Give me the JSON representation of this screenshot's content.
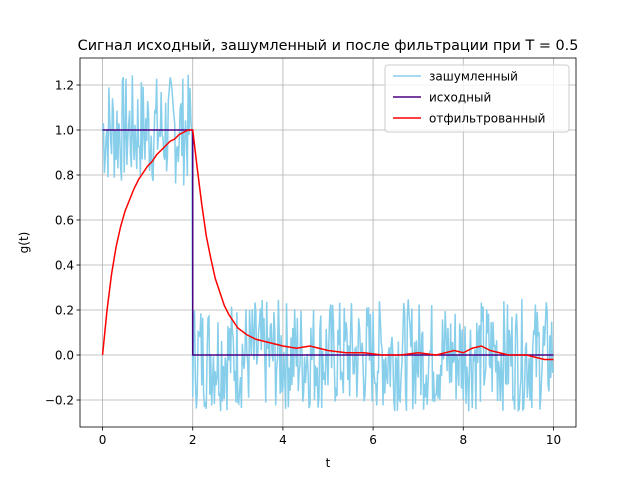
{
  "chart_data": {
    "type": "line",
    "title": "Сигнал исходный, зашумленный и после фильтрации при T = 0.5",
    "xlabel": "t",
    "ylabel": "g(t)",
    "xlim": [
      -0.5,
      10.5
    ],
    "ylim": [
      -0.32,
      1.32
    ],
    "xticks": [
      0,
      2,
      4,
      6,
      8,
      10
    ],
    "yticks": [
      -0.2,
      0.0,
      0.2,
      0.4,
      0.6,
      0.8,
      1.0,
      1.2
    ],
    "xtick_labels": [
      "0",
      "2",
      "4",
      "6",
      "8",
      "10"
    ],
    "ytick_labels": [
      "−0.2",
      "0.0",
      "0.2",
      "0.4",
      "0.6",
      "0.8",
      "1.0",
      "1.2"
    ],
    "grid": true,
    "legend_position": "top-right",
    "series": [
      {
        "name": "зашумленный",
        "color": "#87ceeb",
        "noise": {
          "t_start": 0,
          "t_end": 10,
          "step_t": 2,
          "level_before": 1.0,
          "level_after": 0.0,
          "amplitude": 0.25
        }
      },
      {
        "name": "исходный",
        "color": "#4b0082",
        "x": [
          0,
          2,
          2,
          10
        ],
        "y": [
          1,
          1,
          0,
          0
        ]
      },
      {
        "name": "отфильтрованный",
        "color": "#ff0000",
        "x": [
          0,
          0.1,
          0.2,
          0.3,
          0.4,
          0.5,
          0.6,
          0.7,
          0.8,
          0.9,
          1.0,
          1.1,
          1.2,
          1.3,
          1.4,
          1.5,
          1.6,
          1.7,
          1.8,
          1.9,
          2.0,
          2.1,
          2.2,
          2.3,
          2.4,
          2.5,
          2.6,
          2.7,
          2.8,
          3.0,
          3.2,
          3.4,
          3.6,
          3.8,
          4.0,
          4.3,
          4.6,
          5.0,
          5.4,
          5.8,
          6.2,
          6.6,
          7.0,
          7.4,
          7.8,
          8.0,
          8.2,
          8.4,
          8.6,
          9.0,
          9.4,
          9.8,
          10.0
        ],
        "y": [
          0.0,
          0.2,
          0.36,
          0.48,
          0.57,
          0.64,
          0.69,
          0.74,
          0.78,
          0.81,
          0.84,
          0.86,
          0.89,
          0.91,
          0.93,
          0.95,
          0.96,
          0.98,
          0.99,
          1.0,
          1.0,
          0.83,
          0.67,
          0.53,
          0.43,
          0.34,
          0.28,
          0.22,
          0.18,
          0.12,
          0.09,
          0.07,
          0.06,
          0.05,
          0.04,
          0.03,
          0.04,
          0.02,
          0.01,
          0.01,
          0.0,
          0.0,
          0.01,
          0.0,
          0.02,
          0.01,
          0.03,
          0.04,
          0.02,
          0.0,
          0.0,
          -0.02,
          -0.02
        ]
      }
    ]
  }
}
